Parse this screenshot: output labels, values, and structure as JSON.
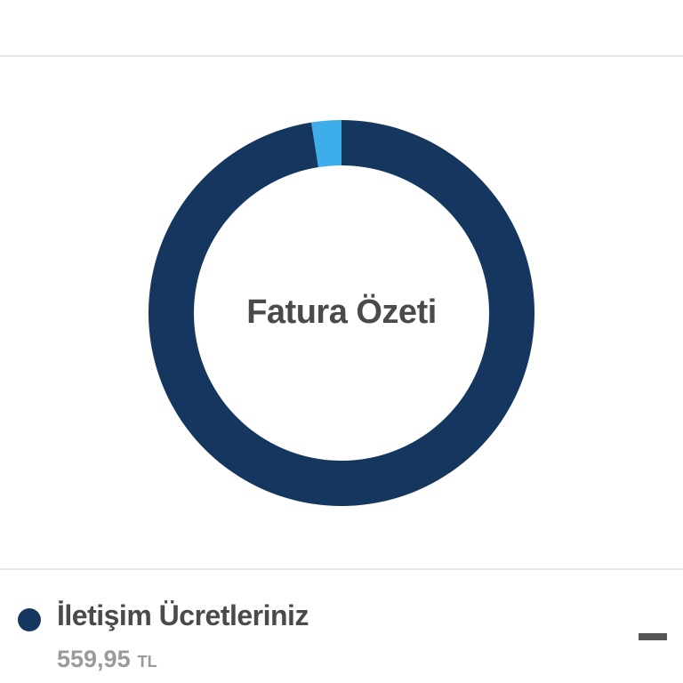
{
  "colors": {
    "primary": "#15375f",
    "secondary": "#3daee9"
  },
  "chart_data": {
    "type": "pie",
    "variant": "donut",
    "title": "Fatura Özeti",
    "values": [
      97.5,
      2.5
    ],
    "colors": [
      "#15375f",
      "#3daee9"
    ]
  },
  "legend": {
    "items": [
      {
        "label": "İletişim Ücretleriniz",
        "amount": "559,95",
        "unit": "TL",
        "color": "#15375f",
        "icon": "minus-icon"
      }
    ]
  }
}
